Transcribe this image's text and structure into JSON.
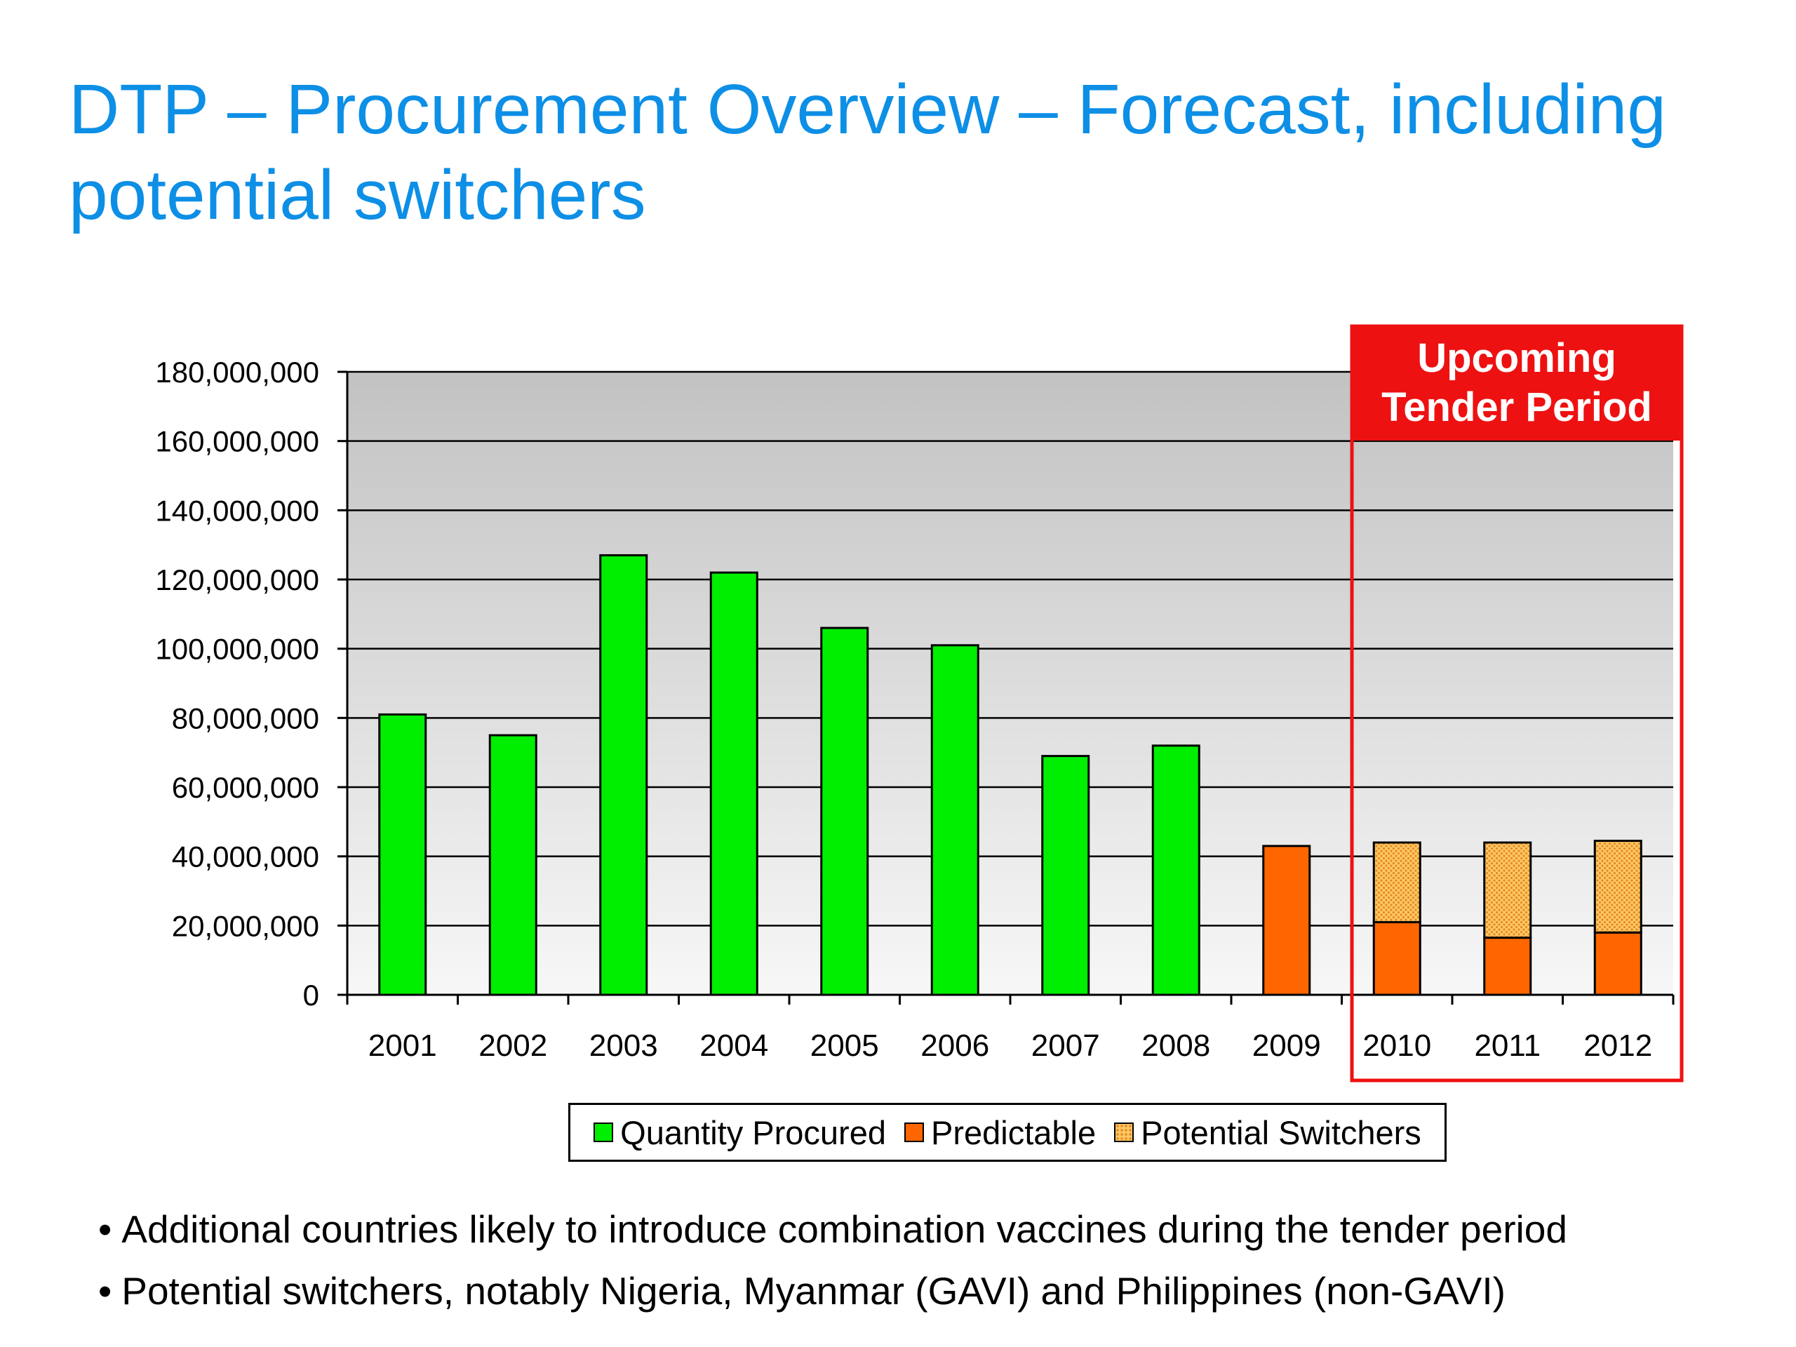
{
  "slide": {
    "title_lines": [
      "DTP – Procurement Overview – Forecast, including",
      "potential switchers"
    ],
    "bullets": [
      "Additional countries likely to introduce combination vaccines during the tender period",
      "Potential switchers, notably Nigeria, Myanmar (GAVI) and Philippines (non-GAVI)"
    ]
  },
  "callout": {
    "line1": "Upcoming",
    "line2": "Tender Period",
    "color": "#ee1111"
  },
  "chart_data": {
    "type": "bar",
    "stacked": true,
    "title": "",
    "xlabel": "",
    "ylabel": "",
    "categories": [
      "2001",
      "2002",
      "2003",
      "2004",
      "2005",
      "2006",
      "2007",
      "2008",
      "2009",
      "2010",
      "2011",
      "2012"
    ],
    "ylim": [
      0,
      180000000
    ],
    "yticks": [
      0,
      20000000,
      40000000,
      60000000,
      80000000,
      100000000,
      120000000,
      140000000,
      160000000,
      180000000
    ],
    "ytick_labels": [
      "0",
      "20,000,000",
      "40,000,000",
      "60,000,000",
      "80,000,000",
      "100,000,000",
      "120,000,000",
      "140,000,000",
      "160,000,000",
      "180,000,000"
    ],
    "grid": true,
    "legend_position": "bottom",
    "series": [
      {
        "name": "Quantity Procured",
        "color": "#00ee00",
        "values": [
          81000000,
          75000000,
          127000000,
          122000000,
          106000000,
          101000000,
          69000000,
          72000000,
          0,
          0,
          0,
          0
        ]
      },
      {
        "name": "Predictable",
        "color": "#ff6600",
        "values": [
          0,
          0,
          0,
          0,
          0,
          0,
          0,
          0,
          43000000,
          21000000,
          16500000,
          18000000
        ]
      },
      {
        "name": "Potential Switchers",
        "color": "#fcc766",
        "pattern": "dotted",
        "values": [
          0,
          0,
          0,
          0,
          0,
          0,
          0,
          0,
          0,
          23000000,
          27500000,
          26500000
        ]
      }
    ]
  }
}
